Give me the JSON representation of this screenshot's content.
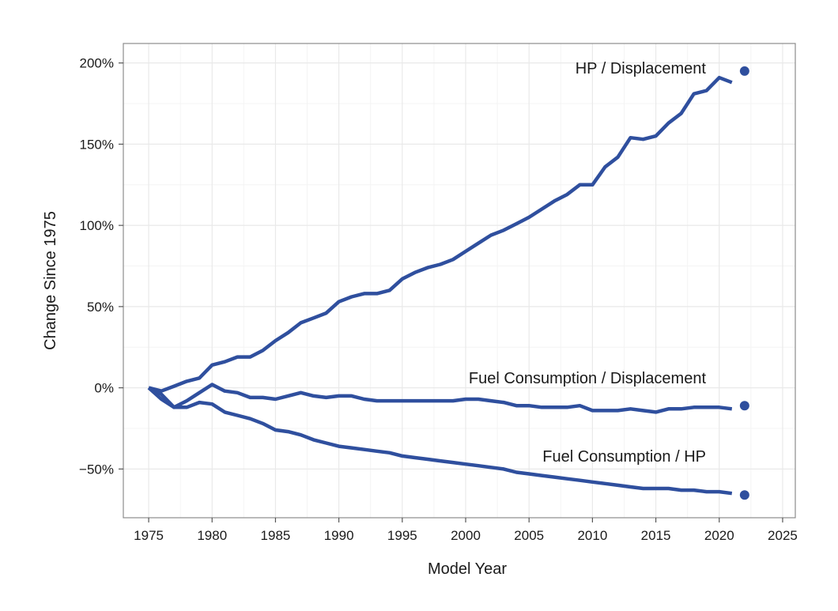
{
  "chart_data": {
    "type": "line",
    "xlabel": "Model Year",
    "ylabel": "Change Since 1975",
    "xlim": [
      1973,
      2026
    ],
    "ylim": [
      -80,
      212
    ],
    "x_ticks": [
      1975,
      1980,
      1985,
      1990,
      1995,
      2000,
      2005,
      2010,
      2015,
      2020,
      2025
    ],
    "x_tick_labels": [
      "1975",
      "1980",
      "1985",
      "1990",
      "1995",
      "2000",
      "2005",
      "2010",
      "2015",
      "2020",
      "2025"
    ],
    "y_ticks": [
      -50,
      0,
      50,
      100,
      150,
      200
    ],
    "y_tick_labels": [
      "−50%",
      "0%",
      "50%",
      "100%",
      "150%",
      "200%"
    ],
    "grid": true,
    "color": "#2f4f9e",
    "series": [
      {
        "name": "HP / Displacement",
        "x": [
          1975,
          1976,
          1977,
          1978,
          1979,
          1980,
          1981,
          1982,
          1983,
          1984,
          1985,
          1986,
          1987,
          1988,
          1989,
          1990,
          1991,
          1992,
          1993,
          1994,
          1995,
          1996,
          1997,
          1998,
          1999,
          2000,
          2001,
          2002,
          2003,
          2004,
          2005,
          2006,
          2007,
          2008,
          2009,
          2010,
          2011,
          2012,
          2013,
          2014,
          2015,
          2016,
          2017,
          2018,
          2019,
          2020,
          2021
        ],
        "values": [
          0,
          -2,
          1,
          4,
          6,
          14,
          16,
          19,
          19,
          23,
          29,
          34,
          40,
          43,
          46,
          53,
          56,
          58,
          58,
          60,
          67,
          71,
          74,
          76,
          79,
          84,
          89,
          94,
          97,
          101,
          105,
          110,
          115,
          119,
          125,
          125,
          136,
          142,
          154,
          153,
          155,
          163,
          169,
          181,
          183,
          191,
          188
        ],
        "point": [
          2022,
          195
        ]
      },
      {
        "name": "Fuel Consumption / Displacement",
        "x": [
          1975,
          1976,
          1977,
          1978,
          1979,
          1980,
          1981,
          1982,
          1983,
          1984,
          1985,
          1986,
          1987,
          1988,
          1989,
          1990,
          1991,
          1992,
          1993,
          1994,
          1995,
          1996,
          1997,
          1998,
          1999,
          2000,
          2001,
          2002,
          2003,
          2004,
          2005,
          2006,
          2007,
          2008,
          2009,
          2010,
          2011,
          2012,
          2013,
          2014,
          2015,
          2016,
          2017,
          2018,
          2019,
          2020,
          2021
        ],
        "values": [
          0,
          -4,
          -12,
          -8,
          -3,
          2,
          -2,
          -3,
          -6,
          -6,
          -7,
          -5,
          -3,
          -5,
          -6,
          -5,
          -5,
          -7,
          -8,
          -8,
          -8,
          -8,
          -8,
          -8,
          -8,
          -7,
          -7,
          -8,
          -9,
          -11,
          -11,
          -12,
          -12,
          -12,
          -11,
          -14,
          -14,
          -14,
          -13,
          -14,
          -15,
          -13,
          -13,
          -12,
          -12,
          -12,
          -13
        ],
        "point": [
          2022,
          -11
        ]
      },
      {
        "name": "Fuel Consumption / HP",
        "x": [
          1975,
          1976,
          1977,
          1978,
          1979,
          1980,
          1981,
          1982,
          1983,
          1984,
          1985,
          1986,
          1987,
          1988,
          1989,
          1990,
          1991,
          1992,
          1993,
          1994,
          1995,
          1996,
          1997,
          1998,
          1999,
          2000,
          2001,
          2002,
          2003,
          2004,
          2005,
          2006,
          2007,
          2008,
          2009,
          2010,
          2011,
          2012,
          2013,
          2014,
          2015,
          2016,
          2017,
          2018,
          2019,
          2020,
          2021
        ],
        "values": [
          0,
          -7,
          -12,
          -12,
          -9,
          -10,
          -15,
          -17,
          -19,
          -22,
          -26,
          -27,
          -29,
          -32,
          -34,
          -36,
          -37,
          -38,
          -39,
          -40,
          -42,
          -43,
          -44,
          -45,
          -46,
          -47,
          -48,
          -49,
          -50,
          -52,
          -53,
          -54,
          -55,
          -56,
          -57,
          -58,
          -59,
          -60,
          -61,
          -62,
          -62,
          -62,
          -63,
          -63,
          -64,
          -64,
          -65
        ],
        "point": [
          2022,
          -66
        ]
      }
    ]
  }
}
